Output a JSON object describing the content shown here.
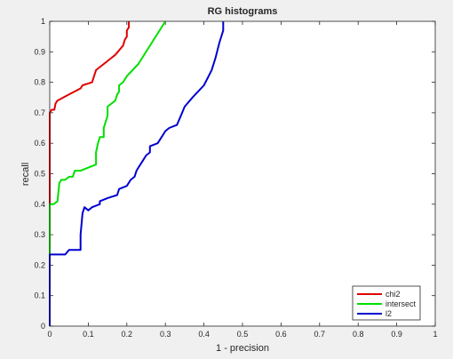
{
  "chart_data": {
    "type": "line",
    "title": "RG histograms",
    "xlabel": "1 - precision",
    "ylabel": "recall",
    "xlim": [
      0,
      1
    ],
    "ylim": [
      0,
      1
    ],
    "xticks": [
      "0",
      "0.1",
      "0.2",
      "0.3",
      "0.4",
      "0.5",
      "0.6",
      "0.7",
      "0.8",
      "0.9",
      "1"
    ],
    "yticks": [
      "0",
      "0.1",
      "0.2",
      "0.3",
      "0.4",
      "0.5",
      "0.6",
      "0.7",
      "0.8",
      "0.9",
      "1"
    ],
    "grid": false,
    "legend_position": "bottom-right",
    "series": [
      {
        "name": "chi2",
        "color": "#e00000",
        "points": [
          [
            0,
            0
          ],
          [
            0,
            0.7
          ],
          [
            0.005,
            0.71
          ],
          [
            0.012,
            0.71
          ],
          [
            0.015,
            0.73
          ],
          [
            0.02,
            0.74
          ],
          [
            0.05,
            0.76
          ],
          [
            0.08,
            0.78
          ],
          [
            0.085,
            0.79
          ],
          [
            0.11,
            0.8
          ],
          [
            0.115,
            0.82
          ],
          [
            0.12,
            0.84
          ],
          [
            0.15,
            0.87
          ],
          [
            0.17,
            0.89
          ],
          [
            0.19,
            0.92
          ],
          [
            0.195,
            0.94
          ],
          [
            0.2,
            0.95
          ],
          [
            0.2,
            0.97
          ],
          [
            0.205,
            0.98
          ],
          [
            0.205,
            1.0
          ]
        ]
      },
      {
        "name": "intersect",
        "color": "#00e000",
        "points": [
          [
            0,
            0
          ],
          [
            0,
            0.4
          ],
          [
            0.01,
            0.4
          ],
          [
            0.02,
            0.41
          ],
          [
            0.025,
            0.47
          ],
          [
            0.03,
            0.48
          ],
          [
            0.04,
            0.48
          ],
          [
            0.05,
            0.49
          ],
          [
            0.06,
            0.49
          ],
          [
            0.065,
            0.51
          ],
          [
            0.08,
            0.51
          ],
          [
            0.12,
            0.53
          ],
          [
            0.12,
            0.57
          ],
          [
            0.125,
            0.6
          ],
          [
            0.13,
            0.62
          ],
          [
            0.14,
            0.62
          ],
          [
            0.14,
            0.65
          ],
          [
            0.145,
            0.67
          ],
          [
            0.15,
            0.69
          ],
          [
            0.15,
            0.72
          ],
          [
            0.16,
            0.73
          ],
          [
            0.17,
            0.74
          ],
          [
            0.175,
            0.76
          ],
          [
            0.18,
            0.77
          ],
          [
            0.18,
            0.79
          ],
          [
            0.19,
            0.8
          ],
          [
            0.2,
            0.82
          ],
          [
            0.23,
            0.86
          ],
          [
            0.26,
            0.92
          ],
          [
            0.3,
            1.0
          ]
        ]
      },
      {
        "name": "l2",
        "color": "#0000d0",
        "points": [
          [
            0,
            0
          ],
          [
            0,
            0.235
          ],
          [
            0.04,
            0.235
          ],
          [
            0.05,
            0.25
          ],
          [
            0.08,
            0.25
          ],
          [
            0.08,
            0.3
          ],
          [
            0.085,
            0.37
          ],
          [
            0.09,
            0.39
          ],
          [
            0.1,
            0.38
          ],
          [
            0.11,
            0.39
          ],
          [
            0.13,
            0.4
          ],
          [
            0.13,
            0.41
          ],
          [
            0.15,
            0.42
          ],
          [
            0.175,
            0.43
          ],
          [
            0.18,
            0.45
          ],
          [
            0.2,
            0.46
          ],
          [
            0.21,
            0.48
          ],
          [
            0.22,
            0.49
          ],
          [
            0.225,
            0.51
          ],
          [
            0.23,
            0.52
          ],
          [
            0.24,
            0.54
          ],
          [
            0.25,
            0.56
          ],
          [
            0.26,
            0.57
          ],
          [
            0.26,
            0.59
          ],
          [
            0.28,
            0.6
          ],
          [
            0.29,
            0.62
          ],
          [
            0.3,
            0.64
          ],
          [
            0.31,
            0.65
          ],
          [
            0.33,
            0.66
          ],
          [
            0.34,
            0.69
          ],
          [
            0.35,
            0.72
          ],
          [
            0.37,
            0.75
          ],
          [
            0.4,
            0.79
          ],
          [
            0.42,
            0.84
          ],
          [
            0.43,
            0.88
          ],
          [
            0.44,
            0.93
          ],
          [
            0.45,
            0.97
          ],
          [
            0.45,
            1.0
          ]
        ]
      }
    ]
  }
}
